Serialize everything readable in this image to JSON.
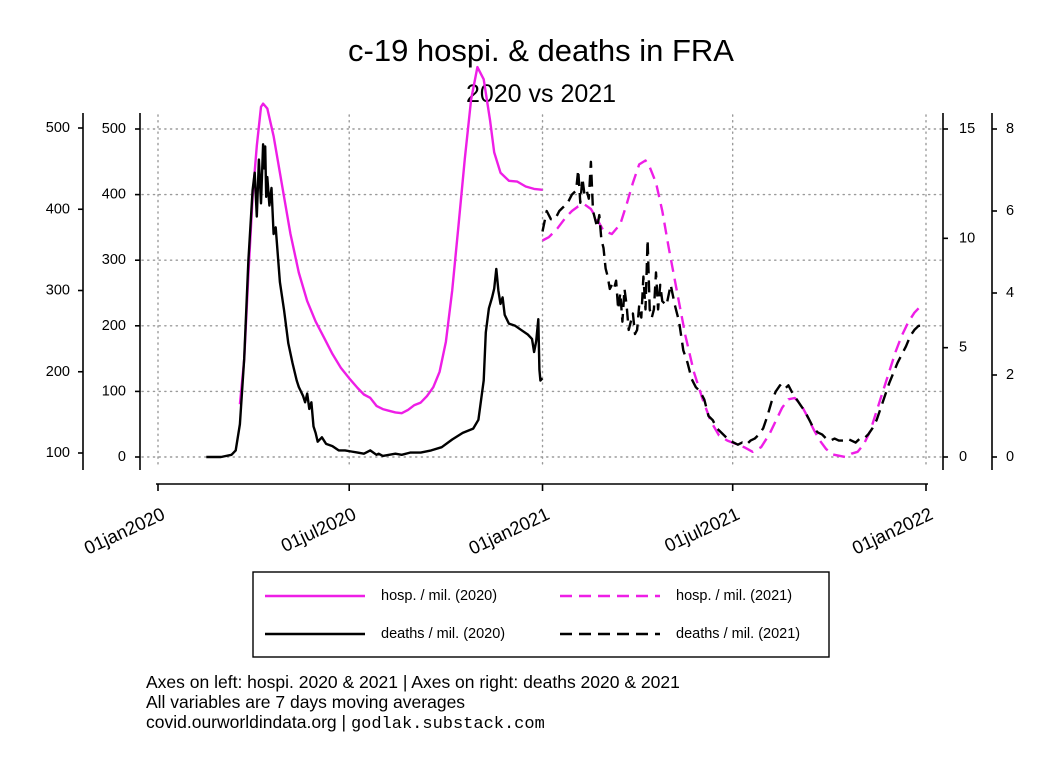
{
  "chart_data": {
    "type": "line",
    "title": "c-19 hospi. & deaths in FRA",
    "subtitle": "2020 vs 2021",
    "colors": {
      "hosp": "#ee1ee6",
      "deaths": "#000000",
      "grid": "#9a9a9a"
    },
    "x_axis": {
      "unit": "days since 01jan2020",
      "range": [
        0,
        731
      ],
      "ticks": [
        {
          "pos": 0,
          "label": "01jan2020"
        },
        {
          "pos": 182,
          "label": "01jul2020"
        },
        {
          "pos": 366,
          "label": "01jan2021"
        },
        {
          "pos": 547,
          "label": "01jul2021"
        },
        {
          "pos": 731,
          "label": "01jan2022"
        }
      ]
    },
    "y_axes": {
      "hosp_2020": {
        "side": "left-outer",
        "range": [
          100,
          500
        ],
        "ticks": [
          "100",
          "200",
          "300",
          "400",
          "500"
        ]
      },
      "hosp_2021": {
        "side": "left-inner",
        "range": [
          0,
          500
        ],
        "ticks": [
          "0",
          "100",
          "200",
          "300",
          "400",
          "500"
        ]
      },
      "deaths_2020": {
        "side": "right-inner",
        "range": [
          0,
          15
        ],
        "ticks": [
          "0",
          "5",
          "10",
          "15"
        ]
      },
      "deaths_2021": {
        "side": "right-outer",
        "range": [
          0,
          8
        ],
        "ticks": [
          "0",
          "2",
          "4",
          "6",
          "8"
        ]
      }
    },
    "series": [
      {
        "name": "hosp. / mil. (2020)",
        "axis": "hosp_2020",
        "style": "solid",
        "color_key": "hosp",
        "x": [
          78,
          82,
          86,
          90,
          94,
          98,
          100,
          104,
          110,
          118,
          126,
          134,
          142,
          150,
          158,
          166,
          174,
          182,
          190,
          196,
          202,
          208,
          214,
          220,
          226,
          232,
          238,
          244,
          250,
          256,
          262,
          268,
          274,
          280,
          286,
          292,
          298,
          304,
          310,
          316,
          320,
          326,
          334,
          342,
          350,
          358,
          366
        ],
        "y": [
          160,
          215,
          320,
          415,
          478,
          526,
          530,
          524,
          490,
          430,
          370,
          322,
          287,
          262,
          242,
          222,
          205,
          192,
          180,
          172,
          168,
          158,
          154,
          152,
          150,
          149,
          153,
          159,
          162,
          170,
          181,
          200,
          237,
          300,
          380,
          462,
          535,
          575,
          560,
          510,
          470,
          445,
          435,
          434,
          428,
          425,
          424
        ]
      },
      {
        "name": "deaths / mil. (2020)",
        "axis": "deaths_2020",
        "style": "solid",
        "color_key": "deaths",
        "x": [
          46,
          60,
          70,
          74,
          78,
          82,
          86,
          90,
          92,
          94,
          96,
          98,
          100,
          101,
          102,
          103,
          104,
          106,
          108,
          110,
          112,
          116,
          120,
          124,
          128,
          132,
          134,
          136,
          138,
          140,
          142,
          144,
          146,
          148,
          150,
          152,
          156,
          160,
          166,
          172,
          178,
          184,
          190,
          196,
          202,
          208,
          210,
          214,
          220,
          226,
          232,
          240,
          250,
          260,
          270,
          280,
          290,
          300,
          305,
          310,
          312,
          315,
          318,
          320,
          322,
          324,
          326,
          328,
          330,
          334,
          340,
          346,
          352,
          356,
          358,
          360,
          362,
          363,
          364,
          366
        ],
        "y": [
          0,
          0,
          0.1,
          0.3,
          1.5,
          4.5,
          9.0,
          12.2,
          13.0,
          11.0,
          13.6,
          11.6,
          14.3,
          13.2,
          14.2,
          11.9,
          12.8,
          11.5,
          12.3,
          10.2,
          10.5,
          8.0,
          6.7,
          5.2,
          4.3,
          3.5,
          3.2,
          3.0,
          2.8,
          2.5,
          2.9,
          2.2,
          2.5,
          1.4,
          1.1,
          0.7,
          0.9,
          0.6,
          0.5,
          0.3,
          0.3,
          0.25,
          0.2,
          0.15,
          0.3,
          0.1,
          0.15,
          0.05,
          0.1,
          0.15,
          0.1,
          0.2,
          0.2,
          0.3,
          0.45,
          0.8,
          1.1,
          1.3,
          1.7,
          3.5,
          5.7,
          6.8,
          7.3,
          7.7,
          8.6,
          7.6,
          7.0,
          7.3,
          6.5,
          6.1,
          6.0,
          5.8,
          5.6,
          5.4,
          4.8,
          5.3,
          6.3,
          4.0,
          3.5,
          3.6
        ]
      },
      {
        "name": "hosp. / mil. (2021)",
        "axis": "hosp_2021",
        "style": "dashed",
        "color_key": "hosp",
        "x": [
          366,
          372,
          380,
          388,
          394,
          400,
          406,
          412,
          418,
          424,
          432,
          440,
          446,
          452,
          458,
          464,
          468,
          474,
          480,
          486,
          494,
          502,
          510,
          518,
          526,
          534,
          542,
          550,
          558,
          566,
          574,
          582,
          588,
          594,
          600,
          606,
          612,
          618,
          624,
          630,
          636,
          642,
          648,
          654,
          660,
          666,
          672,
          678,
          684,
          690,
          696,
          702,
          708,
          714,
          720,
          726
        ],
        "y": [
          330,
          335,
          348,
          365,
          375,
          382,
          385,
          378,
          362,
          345,
          340,
          355,
          385,
          418,
          446,
          452,
          442,
          418,
          375,
          320,
          252,
          185,
          130,
          90,
          55,
          33,
          25,
          20,
          15,
          8,
          15,
          35,
          55,
          75,
          88,
          90,
          80,
          62,
          42,
          25,
          12,
          4,
          2,
          0,
          5,
          8,
          20,
          40,
          70,
          100,
          130,
          160,
          185,
          205,
          220,
          230
        ]
      },
      {
        "name": "deaths / mil. (2021)",
        "axis": "deaths_2021",
        "style": "dashed",
        "color_key": "deaths",
        "x": [
          366,
          370,
          374,
          378,
          382,
          386,
          390,
          394,
          398,
          400,
          402,
          404,
          406,
          408,
          410,
          412,
          414,
          418,
          420,
          422,
          424,
          426,
          428,
          430,
          432,
          434,
          436,
          438,
          440,
          442,
          444,
          446,
          448,
          450,
          452,
          454,
          456,
          458,
          460,
          462,
          464,
          466,
          468,
          470,
          472,
          474,
          476,
          478,
          480,
          484,
          488,
          492,
          496,
          500,
          504,
          508,
          512,
          516,
          520,
          524,
          528,
          532,
          536,
          540,
          544,
          548,
          552,
          556,
          560,
          564,
          568,
          572,
          576,
          580,
          584,
          588,
          592,
          596,
          600,
          604,
          608,
          612,
          616,
          620,
          624,
          628,
          632,
          636,
          640,
          644,
          648,
          652,
          656,
          660,
          664,
          668,
          672,
          676,
          680,
          684,
          688,
          692,
          696,
          700,
          704,
          708,
          712,
          716,
          720,
          724,
          728
        ],
        "y": [
          5.5,
          6.0,
          5.8,
          5.8,
          6.0,
          6.1,
          6.2,
          6.4,
          6.5,
          7.0,
          6.2,
          6.8,
          6.4,
          6.5,
          6.3,
          7.2,
          6.0,
          5.6,
          5.9,
          5.3,
          5.1,
          4.6,
          4.4,
          4.1,
          4.2,
          4.1,
          4.3,
          3.6,
          4.0,
          3.3,
          4.1,
          3.7,
          3.1,
          3.3,
          3.5,
          3.0,
          3.1,
          3.7,
          3.4,
          4.4,
          3.6,
          5.3,
          3.6,
          3.4,
          3.6,
          4.5,
          3.6,
          4.2,
          3.8,
          3.7,
          4.2,
          3.7,
          3.3,
          2.6,
          2.3,
          1.9,
          1.7,
          1.6,
          1.4,
          1.0,
          0.9,
          0.7,
          0.6,
          0.5,
          0.4,
          0.35,
          0.3,
          0.35,
          0.3,
          0.4,
          0.45,
          0.55,
          0.7,
          1.0,
          1.35,
          1.6,
          1.75,
          1.65,
          1.75,
          1.55,
          1.4,
          1.25,
          1.1,
          0.9,
          0.7,
          0.6,
          0.55,
          0.45,
          0.4,
          0.45,
          0.4,
          0.4,
          0.45,
          0.4,
          0.35,
          0.45,
          0.45,
          0.55,
          0.7,
          0.9,
          1.2,
          1.5,
          1.8,
          2.05,
          2.3,
          2.5,
          2.7,
          2.95,
          3.1,
          3.2,
          3.2
        ]
      }
    ],
    "legend": [
      {
        "label": "hosp. / mil. (2020)",
        "style": "solid",
        "color_key": "hosp"
      },
      {
        "label": "hosp. / mil. (2021)",
        "style": "dashed",
        "color_key": "hosp"
      },
      {
        "label": "deaths / mil. (2020)",
        "style": "solid",
        "color_key": "deaths"
      },
      {
        "label": "deaths / mil. (2021)",
        "style": "dashed",
        "color_key": "deaths"
      }
    ]
  },
  "notes": {
    "line1": "Axes on left: hospi. 2020 & 2021 | Axes on right: deaths 2020 & 2021",
    "line2": "All variables are 7 days moving averages",
    "line3_source": "covid.ourworldindata.org |",
    "line3_site": "godlak.substack.com"
  }
}
